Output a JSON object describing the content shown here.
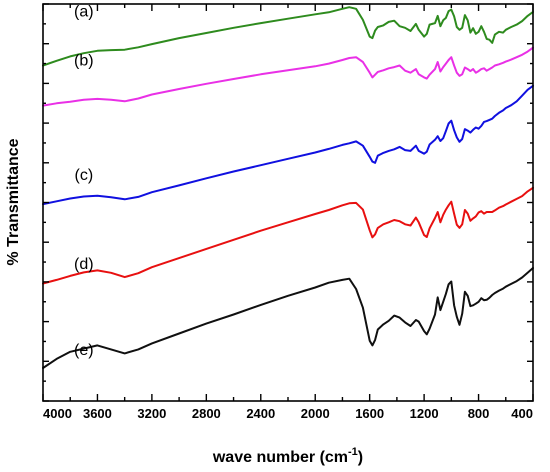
{
  "chart_data": {
    "type": "line",
    "title": "",
    "xlabel": "wave number (cm",
    "xlabel_sup": "-1",
    "xlabel_close": ")",
    "ylabel": "% Transmittance",
    "xlim": [
      4000,
      400
    ],
    "ylim": [
      0,
      100
    ],
    "x_reversed": true,
    "y_ticks_labeled": false,
    "grid": false,
    "x_ticks": [
      4000,
      3600,
      3200,
      2800,
      2400,
      2000,
      1600,
      1200,
      800,
      400
    ],
    "x_tick_labels": [
      "4000",
      "3600",
      "3200",
      "2800",
      "2400",
      "2000",
      "1600",
      "1200",
      "800",
      "400"
    ],
    "x": [
      4000,
      3900,
      3800,
      3700,
      3600,
      3500,
      3400,
      3300,
      3200,
      3000,
      2800,
      2600,
      2400,
      2200,
      2000,
      1900,
      1800,
      1750,
      1700,
      1650,
      1600,
      1580,
      1560,
      1540,
      1500,
      1460,
      1420,
      1380,
      1340,
      1300,
      1260,
      1240,
      1200,
      1180,
      1160,
      1120,
      1100,
      1080,
      1060,
      1040,
      1020,
      1000,
      980,
      960,
      940,
      920,
      900,
      880,
      860,
      840,
      820,
      800,
      780,
      760,
      740,
      720,
      700,
      680,
      650,
      620,
      600,
      560,
      520,
      480,
      440,
      400
    ],
    "series": [
      {
        "name": "(a)",
        "color": "#2e8b1e",
        "values": [
          84.5,
          85.7,
          86.8,
          87.6,
          88.2,
          88.4,
          88.5,
          89.1,
          89.9,
          91.4,
          92.7,
          94.0,
          95.2,
          96.3,
          97.4,
          97.9,
          98.8,
          99.2,
          98.8,
          96.0,
          91.8,
          91.4,
          93.3,
          94.2,
          94.6,
          95.5,
          95.8,
          94.4,
          94.0,
          93.2,
          95.0,
          93.5,
          91.8,
          92.5,
          94.8,
          95.2,
          97.0,
          94.4,
          95.9,
          96.5,
          98.2,
          98.6,
          96.9,
          94.2,
          93.5,
          94.0,
          97.2,
          95.9,
          92.8,
          93.9,
          92.5,
          93.0,
          94.4,
          93.0,
          91.2,
          91.0,
          90.2,
          92.3,
          93.0,
          92.8,
          93.5,
          94.2,
          94.8,
          95.7,
          97.0,
          98.0
        ]
      },
      {
        "name": "(b)",
        "color": "#e930e6",
        "values": [
          74.4,
          75.0,
          75.4,
          75.9,
          76.1,
          75.9,
          75.5,
          76.2,
          77.2,
          78.6,
          79.9,
          81.1,
          82.3,
          83.3,
          84.3,
          85.0,
          85.9,
          86.4,
          86.6,
          85.4,
          82.7,
          81.5,
          82.2,
          82.9,
          83.3,
          83.8,
          84.1,
          84.5,
          83.2,
          82.7,
          83.6,
          82.3,
          81.5,
          81.2,
          82.2,
          83.6,
          85.4,
          83.0,
          84.1,
          85.0,
          85.9,
          86.6,
          84.5,
          82.7,
          81.9,
          82.3,
          84.0,
          83.6,
          83.1,
          83.6,
          82.7,
          83.1,
          83.6,
          83.8,
          83.2,
          83.6,
          84.0,
          84.5,
          84.8,
          85.2,
          85.5,
          86.0,
          86.6,
          87.2,
          88.0,
          89.0
        ]
      },
      {
        "name": "(c)",
        "color": "#1010e0",
        "values": [
          49.6,
          50.3,
          51.0,
          51.5,
          51.7,
          51.3,
          50.8,
          51.4,
          52.6,
          54.3,
          56.1,
          57.8,
          59.4,
          61.0,
          62.6,
          63.5,
          64.5,
          64.9,
          65.4,
          64.3,
          61.5,
          60.3,
          60.0,
          61.8,
          62.5,
          63.0,
          63.4,
          64.0,
          63.2,
          63.0,
          64.3,
          63.0,
          62.3,
          62.8,
          64.6,
          65.8,
          66.7,
          65.5,
          66.2,
          68.0,
          69.9,
          70.6,
          68.2,
          66.4,
          65.3,
          66.0,
          68.5,
          68.1,
          67.6,
          68.3,
          68.9,
          68.6,
          69.3,
          70.3,
          70.5,
          70.8,
          71.1,
          71.8,
          72.6,
          73.2,
          73.8,
          74.5,
          75.5,
          76.9,
          78.4,
          79.4
        ]
      },
      {
        "name": "(d)",
        "color": "#e81010",
        "values": [
          29.6,
          30.5,
          31.5,
          32.4,
          32.9,
          32.3,
          31.2,
          32.2,
          33.7,
          36.0,
          38.3,
          40.6,
          42.9,
          45.0,
          47.1,
          48.1,
          49.3,
          49.8,
          49.9,
          48.2,
          43.0,
          41.2,
          42.0,
          43.6,
          44.5,
          45.0,
          45.6,
          45.3,
          44.5,
          44.2,
          46.2,
          45.0,
          41.8,
          41.3,
          43.5,
          46.1,
          47.6,
          45.0,
          46.9,
          48.2,
          49.3,
          50.2,
          47.2,
          44.4,
          43.6,
          44.5,
          48.1,
          47.2,
          45.4,
          46.0,
          46.5,
          47.5,
          47.8,
          47.2,
          47.6,
          47.6,
          47.6,
          48.0,
          48.7,
          49.1,
          49.5,
          50.2,
          50.9,
          51.6,
          52.8,
          53.7
        ]
      },
      {
        "name": "(e)",
        "color": "#101010",
        "values": [
          8.3,
          10.6,
          12.4,
          13.2,
          14.0,
          13.0,
          12.0,
          13.0,
          14.5,
          17.0,
          19.5,
          21.8,
          24.2,
          26.5,
          28.6,
          29.8,
          30.5,
          30.8,
          28.2,
          23.5,
          15.2,
          14.0,
          15.4,
          18.0,
          19.3,
          20.2,
          21.5,
          21.0,
          19.8,
          18.9,
          20.4,
          20.0,
          17.6,
          16.8,
          18.2,
          21.8,
          26.1,
          22.9,
          25.0,
          27.0,
          29.4,
          30.1,
          24.1,
          21.2,
          19.2,
          22.0,
          27.5,
          26.5,
          23.9,
          24.1,
          24.5,
          25.0,
          25.9,
          25.4,
          25.5,
          26.0,
          26.7,
          27.2,
          27.8,
          28.3,
          28.8,
          29.5,
          30.2,
          31.1,
          32.3,
          33.5
        ]
      }
    ],
    "series_label_values": [
      96.8,
      84.5,
      55.7,
      33.2,
      11.6
    ]
  }
}
